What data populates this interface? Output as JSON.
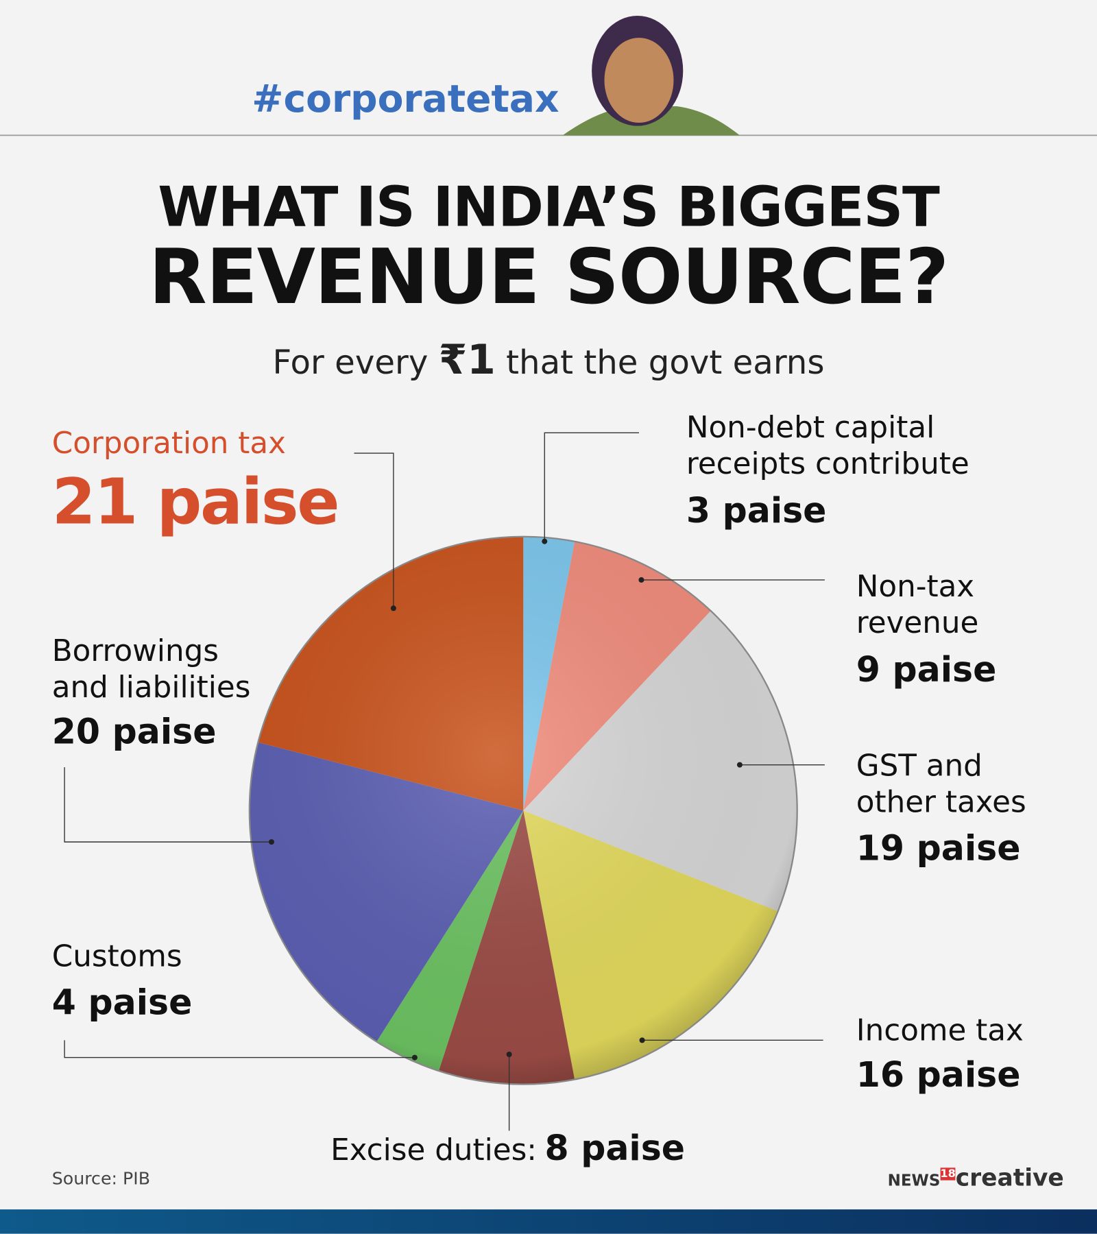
{
  "header": {
    "hashtag": "#corporatetax"
  },
  "chart_data": {
    "type": "pie",
    "title": [
      "WHAT IS INDIA’S BIGGEST",
      "REVENUE SOURCE?"
    ],
    "subtitle": [
      "For every",
      "₹1",
      "that the govt earns"
    ],
    "categories": [
      "Non-debt capital\nreceipts contribute",
      "Non-tax\nrevenue",
      "GST and\nother taxes",
      "Income tax",
      "Excise duties:",
      "Customs",
      "Borrowings\nand liabilities",
      "Corporation tax"
    ],
    "values": [
      3,
      9,
      19,
      16,
      8,
      4,
      20,
      21
    ],
    "value_labels": [
      "3 paise",
      "9 paise",
      "19 paise",
      "16 paise",
      "8 paise",
      "4 paise",
      "20 paise",
      "21 paise"
    ],
    "colors": [
      "#7cc6ec",
      "#f08c7c",
      "#d6d6d6",
      "#e2d95c",
      "#9c4c46",
      "#6cc262",
      "#5b5fb2",
      "#c9531c"
    ]
  },
  "footer": {
    "source": "Source: PIB",
    "brand": [
      "NEWS",
      "18",
      "creative"
    ]
  }
}
